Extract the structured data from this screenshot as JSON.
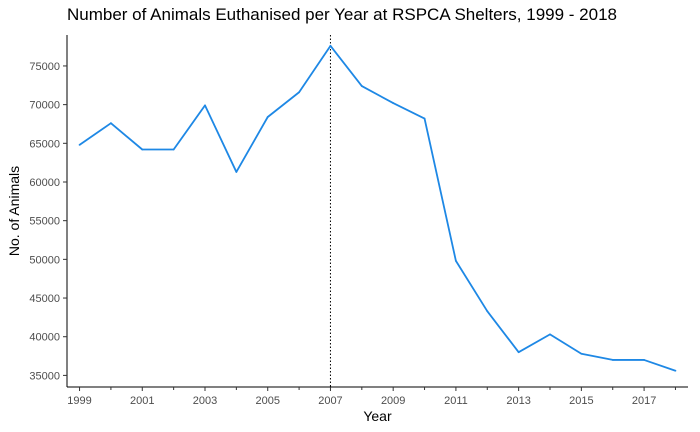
{
  "chart_data": {
    "type": "line",
    "title": "Number of Animals Euthanised per Year at RSPCA Shelters, 1999 - 2018",
    "xlabel": "Year",
    "ylabel": "No. of Animals",
    "x": [
      1999,
      2000,
      2001,
      2002,
      2003,
      2004,
      2005,
      2006,
      2007,
      2008,
      2009,
      2010,
      2011,
      2012,
      2013,
      2014,
      2015,
      2016,
      2017,
      2018
    ],
    "series": [
      {
        "values": [
          64800,
          67600,
          64200,
          64200,
          69900,
          61300,
          68400,
          71600,
          77600,
          72400,
          70200,
          68200,
          49800,
          43300,
          38000,
          40300,
          37800,
          37000,
          37000,
          35600
        ],
        "color": "#1e88e5"
      }
    ],
    "xlim": [
      1998.6,
      2018.4
    ],
    "ylim": [
      33500,
      79000
    ],
    "x_ticks": [
      1999,
      2001,
      2003,
      2005,
      2007,
      2009,
      2011,
      2013,
      2015,
      2017
    ],
    "x_minor_ticks": [
      2000,
      2002,
      2004,
      2006,
      2008,
      2010,
      2012,
      2014,
      2016,
      2018
    ],
    "y_ticks": [
      35000,
      40000,
      45000,
      50000,
      55000,
      60000,
      65000,
      70000,
      75000
    ],
    "reference_line": {
      "x": 2007,
      "style": "dotted",
      "color": "#000000"
    },
    "grid": false,
    "legend": "none",
    "axis_color": "#000000"
  }
}
